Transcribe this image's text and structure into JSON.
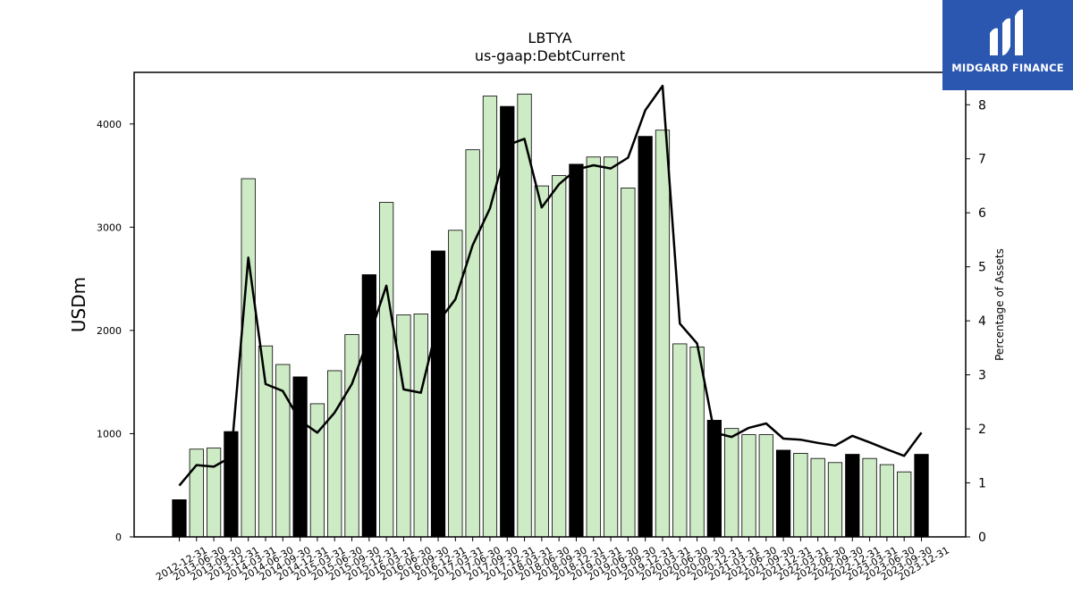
{
  "chart_data": {
    "type": "bar",
    "title": "LBTYA",
    "subtitle": "us-gaap:DebtCurrent",
    "ylabel": "USDm",
    "y2label": "Percentage of Assets",
    "ylim": [
      0,
      4500
    ],
    "y2lim": [
      0,
      8.6
    ],
    "yticks": [
      0,
      1000,
      2000,
      3000,
      4000
    ],
    "y2ticks": [
      0,
      1,
      2,
      3,
      4,
      5,
      6,
      7,
      8
    ],
    "categories": [
      "2012-12-31",
      "2013-06-30",
      "2013-09-30",
      "2013-12-31",
      "2014-03-31",
      "2014-06-30",
      "2014-09-30",
      "2014-12-31",
      "2015-03-31",
      "2015-06-30",
      "2015-09-30",
      "2015-12-31",
      "2016-03-31",
      "2016-06-30",
      "2016-09-30",
      "2016-12-31",
      "2017-03-31",
      "2017-06-30",
      "2017-09-30",
      "2017-12-31",
      "2018-03-31",
      "2018-06-30",
      "2018-09-30",
      "2018-12-31",
      "2019-03-31",
      "2019-06-30",
      "2019-09-30",
      "2019-12-31",
      "2020-03-31",
      "2020-06-30",
      "2020-09-30",
      "2020-12-31",
      "2021-03-31",
      "2021-06-30",
      "2021-09-30",
      "2021-12-31",
      "2022-03-31",
      "2022-06-30",
      "2022-09-30",
      "2022-12-31",
      "2023-03-31",
      "2023-06-30",
      "2023-09-30",
      "2023-12-31"
    ],
    "series": [
      {
        "type": "bar",
        "values": [
          360,
          850,
          860,
          1020,
          3470,
          1850,
          1670,
          1550,
          1290,
          1610,
          1960,
          2540,
          3240,
          2150,
          2160,
          2770,
          2970,
          3750,
          4270,
          4170,
          4290,
          3400,
          3500,
          3610,
          3680,
          3680,
          3380,
          3880,
          3940,
          1870,
          1840,
          1130,
          1050,
          990,
          990,
          840,
          810,
          760,
          720,
          800,
          760,
          700,
          630,
          800
        ],
        "highlight": [
          true,
          false,
          false,
          true,
          false,
          false,
          false,
          true,
          false,
          false,
          false,
          true,
          false,
          false,
          false,
          true,
          false,
          false,
          false,
          true,
          false,
          false,
          false,
          true,
          false,
          false,
          false,
          true,
          false,
          false,
          false,
          true,
          false,
          false,
          false,
          true,
          false,
          false,
          false,
          true,
          false,
          false,
          false,
          true
        ],
        "color": "#cdebc5",
        "highlight_color": "#000000"
      },
      {
        "type": "line",
        "axis": "right",
        "values": [
          0.95,
          1.33,
          1.3,
          1.48,
          5.17,
          2.83,
          2.7,
          2.15,
          1.93,
          2.3,
          2.83,
          3.7,
          4.65,
          2.73,
          2.67,
          3.98,
          4.4,
          5.4,
          6.08,
          7.25,
          7.37,
          6.1,
          6.53,
          6.8,
          6.88,
          6.82,
          7.02,
          7.9,
          8.35,
          3.95,
          3.58,
          1.93,
          1.85,
          2.02,
          2.1,
          1.82,
          1.8,
          1.74,
          1.69,
          1.87,
          1.75,
          1.62,
          1.5,
          1.93
        ],
        "color": "#000000"
      }
    ],
    "grid": false,
    "legend": "none"
  },
  "logo": {
    "text": "MIDGARD FINANCE",
    "color": "#2b57b0"
  }
}
